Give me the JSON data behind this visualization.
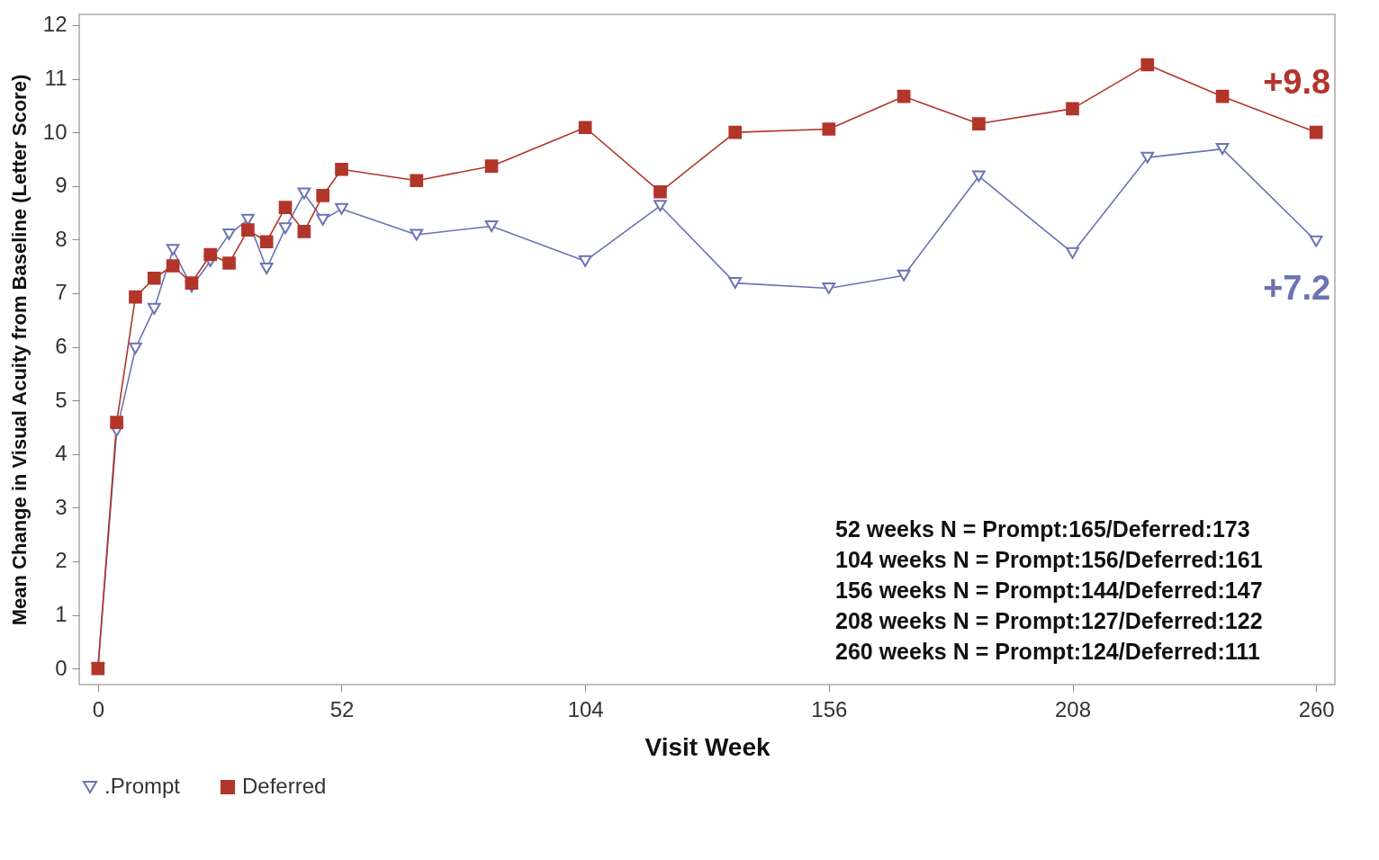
{
  "chart_data": {
    "type": "line",
    "xlabel": "Visit Week",
    "ylabel": "Mean Change in Visual Acuity from Baseline (Letter Score)",
    "xlim": [
      -4,
      264
    ],
    "ylim": [
      -0.3,
      12.2
    ],
    "xticks": [
      0,
      52,
      104,
      156,
      208,
      260
    ],
    "yticks": [
      0,
      1,
      2,
      3,
      4,
      5,
      6,
      7,
      8,
      9,
      10,
      11,
      12
    ],
    "grid": false,
    "legend": "bottom",
    "x": [
      0,
      4,
      8,
      12,
      16,
      20,
      24,
      28,
      32,
      36,
      40,
      44,
      48,
      52,
      68,
      84,
      104,
      120,
      136,
      156,
      172,
      188,
      208,
      224,
      240,
      260
    ],
    "series": [
      {
        "name": ".Prompt",
        "color": "#6a73b5",
        "marker": "triangle",
        "values": [
          0,
          4.43,
          5.97,
          6.71,
          7.81,
          7.12,
          7.6,
          8.1,
          8.37,
          7.46,
          8.21,
          8.86,
          8.37,
          8.57,
          8.09,
          8.25,
          7.6,
          8.63,
          7.19,
          7.09,
          7.33,
          9.18,
          7.75,
          9.53,
          9.69,
          7.97
        ]
      },
      {
        "name": "Deferred",
        "color": "#b2352a",
        "marker": "square",
        "values": [
          0,
          4.59,
          6.93,
          7.28,
          7.51,
          7.19,
          7.72,
          7.56,
          8.18,
          7.96,
          8.6,
          8.15,
          8.82,
          9.31,
          9.1,
          9.37,
          10.09,
          8.89,
          10.0,
          10.06,
          10.67,
          10.16,
          10.44,
          11.26,
          10.67,
          10.0
        ]
      }
    ],
    "annotations": [
      {
        "text": "+9.8",
        "x": 260,
        "y": 10.0
      },
      {
        "text": "+7.2",
        "x": 260,
        "y": 7.97
      },
      "52 weeks N = Prompt:165/Deferred:173",
      "104 weeks N = Prompt:156/Deferred:161",
      "156 weeks N = Prompt:144/Deferred:147",
      "208 weeks N = Prompt:127/Deferred:122",
      "260 weeks N = Prompt:124/Deferred:111"
    ]
  }
}
